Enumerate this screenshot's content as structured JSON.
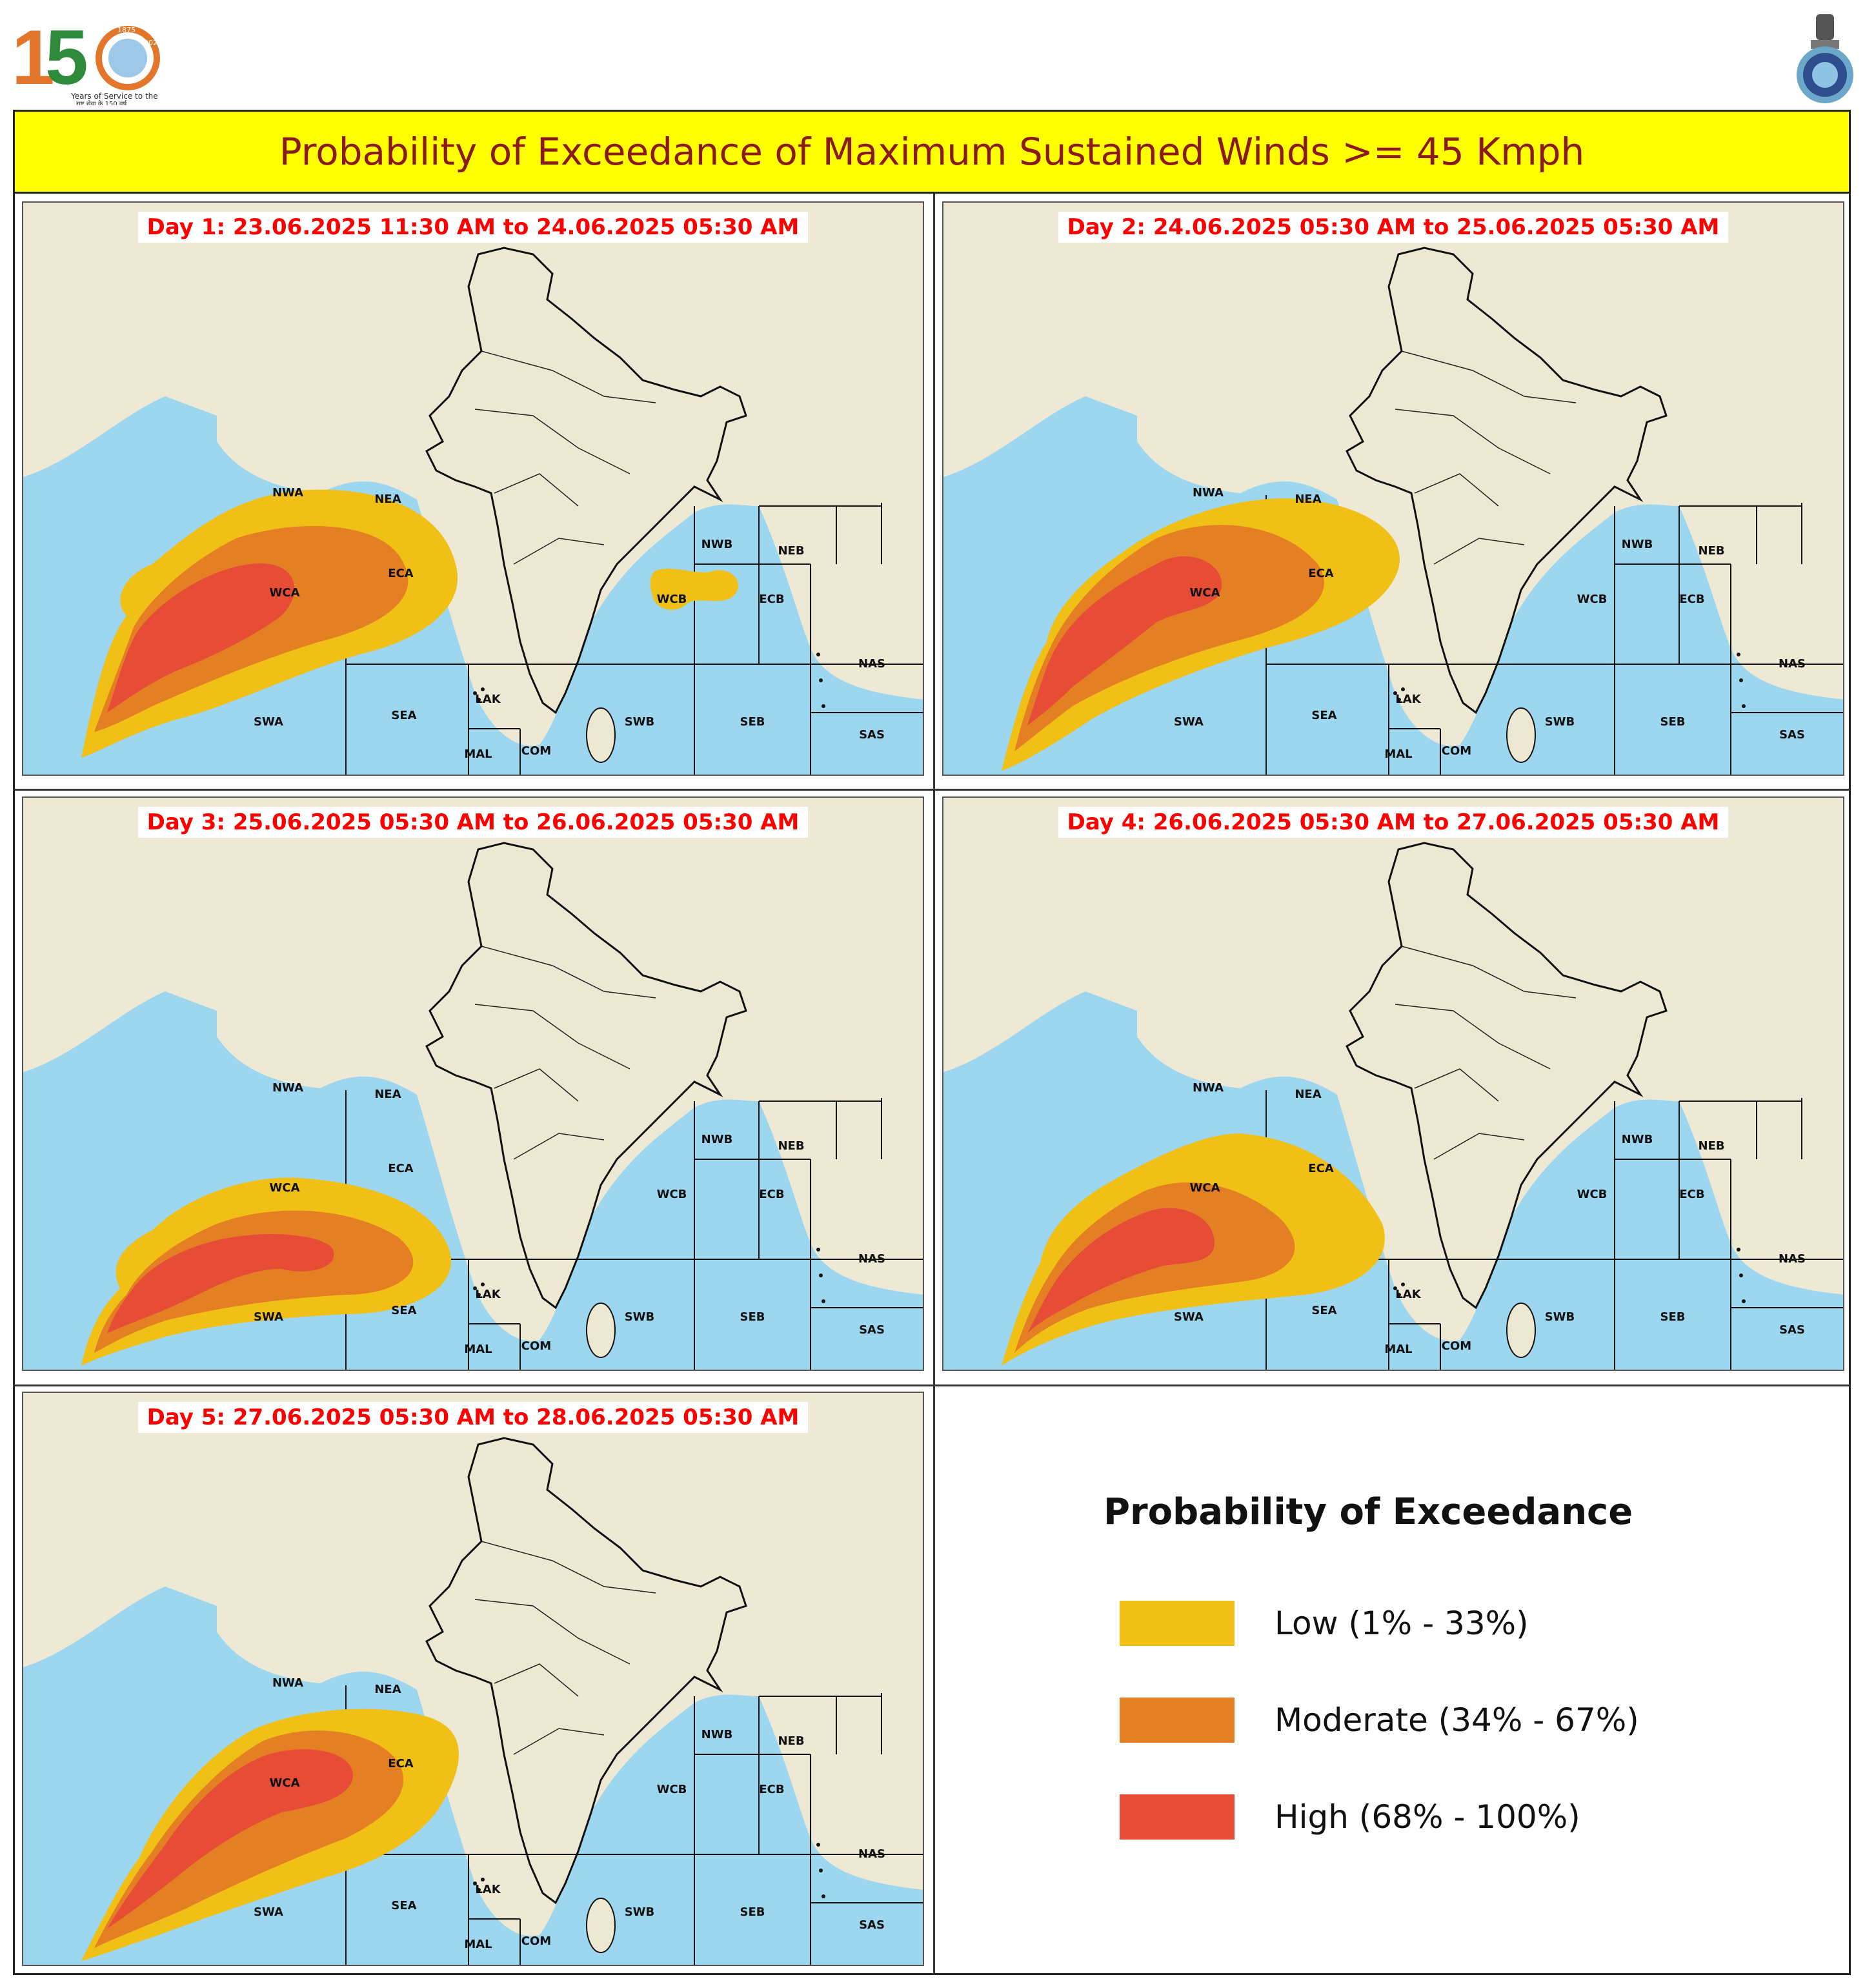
{
  "header": {
    "title": "Probability of Exceedance of Maximum Sustained Winds >= 45 Kmph",
    "logo_left": {
      "number": "150",
      "tagline": "Years of Service to the Nation",
      "tagline_hindi": "राष्ट्र सेवा के 150 वर्ष",
      "ring_text_top": "1875",
      "ring_text_right": "2025"
    }
  },
  "colors": {
    "low": "#f0c016",
    "moderate": "#e47f24",
    "high": "#e64c36",
    "sea": "#9dd6ef",
    "land": "#ede9d4",
    "title_bg": "#ffff00",
    "title_text": "#8b1a1a",
    "panel_label": "#ff0000"
  },
  "region_labels": [
    "NWA",
    "NEA",
    "ECA",
    "WCA",
    "SWA",
    "SEA",
    "LAK",
    "MAL",
    "COM",
    "SWB",
    "SEB",
    "WCB",
    "ECB",
    "NWB",
    "NEB",
    "NAS",
    "SAS"
  ],
  "panels": [
    {
      "label": "Day 1: 23.06.2025 11:30 AM to 24.06.2025 05:30 AM"
    },
    {
      "label": "Day 2: 24.06.2025 05:30 AM to 25.06.2025 05:30 AM"
    },
    {
      "label": "Day 3: 25.06.2025 05:30 AM to 26.06.2025 05:30 AM"
    },
    {
      "label": "Day 4: 26.06.2025 05:30 AM to 27.06.2025 05:30 AM"
    },
    {
      "label": "Day 5: 27.06.2025 05:30 AM to 28.06.2025 05:30 AM"
    }
  ],
  "legend": {
    "title": "Probability of Exceedance",
    "items": [
      {
        "label": "Low (1% - 33%)",
        "color": "#f0c016"
      },
      {
        "label": "Moderate (34% - 67%)",
        "color": "#e47f24"
      },
      {
        "label": "High (68% - 100%)",
        "color": "#e64c36"
      }
    ]
  }
}
